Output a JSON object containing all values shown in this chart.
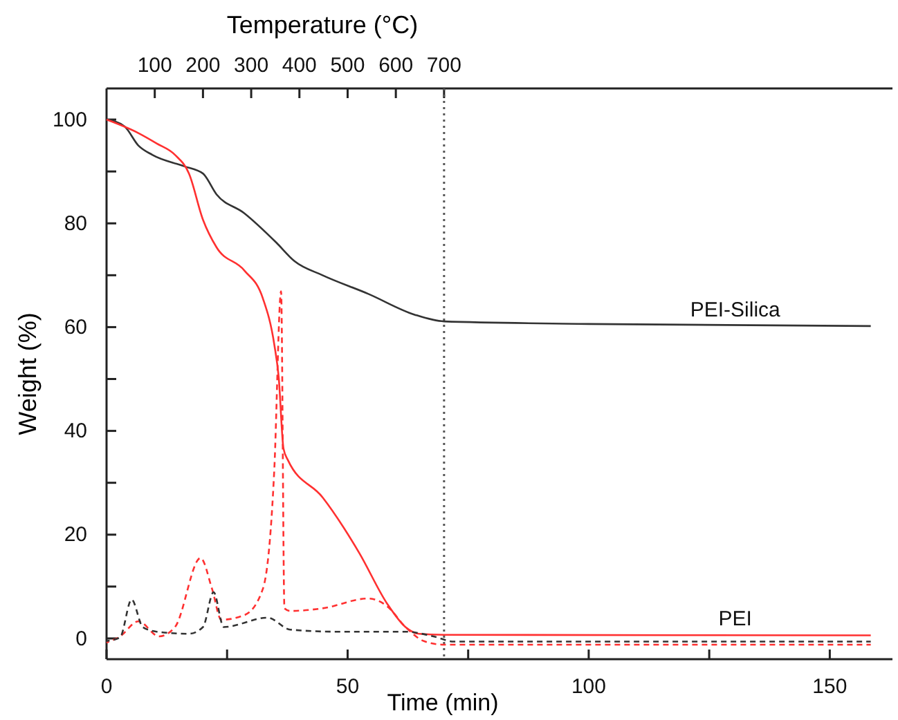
{
  "chart_data": {
    "type": "line",
    "xlabel": "Time (min)",
    "ylabel": "Weight (%)",
    "x2label": "Temperature (°C)",
    "xlim": [
      0,
      163
    ],
    "ylim": [
      -4,
      106
    ],
    "x2lim": [
      0,
      1630
    ],
    "xticks": [
      0,
      {
        "value": 25,
        "label": null
      },
      50,
      {
        "value": 75,
        "label": null
      },
      100,
      {
        "value": 125,
        "label": null
      },
      150
    ],
    "yticks": [
      0,
      {
        "value": 10,
        "label": null
      },
      20,
      {
        "value": 30,
        "label": null
      },
      40,
      {
        "value": 50,
        "label": null
      },
      60,
      {
        "value": 70,
        "label": null
      },
      80,
      {
        "value": 90,
        "label": null
      },
      100
    ],
    "x2ticks": [
      100,
      200,
      300,
      400,
      500,
      600,
      700
    ],
    "grid": false,
    "ref_lines": [
      {
        "axis": "x",
        "value": 70,
        "color": "#555555",
        "line_style": "dotted"
      }
    ],
    "series": [
      {
        "name": "PEI-Silica",
        "color": "#333333",
        "line_style": "solid",
        "x": [
          0,
          3.7,
          6.6,
          9.5,
          16.1,
          20,
          22.8,
          28.5,
          35.2,
          39,
          44.8,
          54.3,
          63.9,
          70,
          100,
          158.5
        ],
        "values": [
          100,
          98.7,
          95,
          93.2,
          91,
          89.6,
          85.6,
          82,
          76.3,
          72.7,
          70,
          66.4,
          62.4,
          61.1,
          60.6,
          60.2
        ]
      },
      {
        "name": "PEI",
        "color": "#ff3030",
        "line_style": "solid",
        "x": [
          0,
          6.6,
          10.4,
          14.2,
          17.1,
          20,
          22.8,
          28.6,
          32.4,
          34.8,
          35.7,
          36.7,
          37.6,
          44.8,
          52.4,
          58.2,
          62,
          64.8,
          70,
          158.5
        ],
        "values": [
          100,
          97.4,
          95.4,
          93.2,
          89.6,
          80.7,
          75.4,
          70.9,
          65.6,
          56.6,
          50.4,
          36.6,
          34.4,
          27.2,
          16.5,
          6.7,
          2.2,
          0.9,
          0.7,
          0.6
        ]
      },
      {
        "color": "#ff3030",
        "line_style": "dashed",
        "x": [
          0,
          2.8,
          6.6,
          10.9,
          14.2,
          19.5,
          21.9,
          23.8,
          28.6,
          32.4,
          34.8,
          36.2,
          36.9,
          38.1,
          44.8,
          54.3,
          58.2,
          62,
          65.8,
          70,
          158.5
        ],
        "values": [
          -0.8,
          0.4,
          3.3,
          0.4,
          2.2,
          15.5,
          9.5,
          3.6,
          4.5,
          9.5,
          32.7,
          66.9,
          5.8,
          5.3,
          5.8,
          7.7,
          6.2,
          2.2,
          -0.5,
          -1.2,
          -1.2
        ]
      },
      {
        "color": "#333333",
        "line_style": "dashed",
        "x": [
          0,
          2.8,
          5.2,
          7.5,
          10.4,
          17.1,
          20,
          22.2,
          24.3,
          33.4,
          38.1,
          47.7,
          62,
          67.8,
          72,
          158.5
        ],
        "values": [
          -0.5,
          0.2,
          7.5,
          2.2,
          1.3,
          0.9,
          2.2,
          8.9,
          2.2,
          4,
          1.7,
          1.3,
          1.3,
          0.4,
          -0.6,
          -0.6
        ]
      }
    ]
  }
}
